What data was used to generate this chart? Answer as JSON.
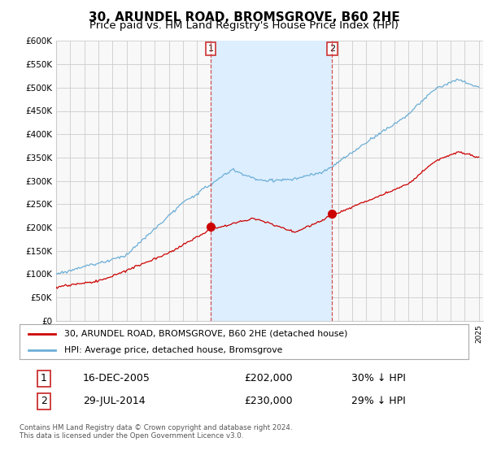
{
  "title": "30, ARUNDEL ROAD, BROMSGROVE, B60 2HE",
  "subtitle": "Price paid vs. HM Land Registry's House Price Index (HPI)",
  "ylim": [
    0,
    600000
  ],
  "yticks": [
    0,
    50000,
    100000,
    150000,
    200000,
    250000,
    300000,
    350000,
    400000,
    450000,
    500000,
    550000,
    600000
  ],
  "ytick_labels": [
    "£0",
    "£50K",
    "£100K",
    "£150K",
    "£200K",
    "£250K",
    "£300K",
    "£350K",
    "£400K",
    "£450K",
    "£500K",
    "£550K",
    "£600K"
  ],
  "hpi_color": "#6baed6",
  "price_color": "#cc0000",
  "vline_color": "#cc3333",
  "shade_color": "#ddeeff",
  "background_color": "#f8f8f8",
  "grid_color": "#cccccc",
  "sale1_date": 2005.96,
  "sale1_price": 202000,
  "sale2_date": 2014.58,
  "sale2_price": 230000,
  "legend_entry1": "30, ARUNDEL ROAD, BROMSGROVE, B60 2HE (detached house)",
  "legend_entry2": "HPI: Average price, detached house, Bromsgrove",
  "footer": "Contains HM Land Registry data © Crown copyright and database right 2024.\nThis data is licensed under the Open Government Licence v3.0.",
  "title_fontsize": 11,
  "subtitle_fontsize": 9.5
}
